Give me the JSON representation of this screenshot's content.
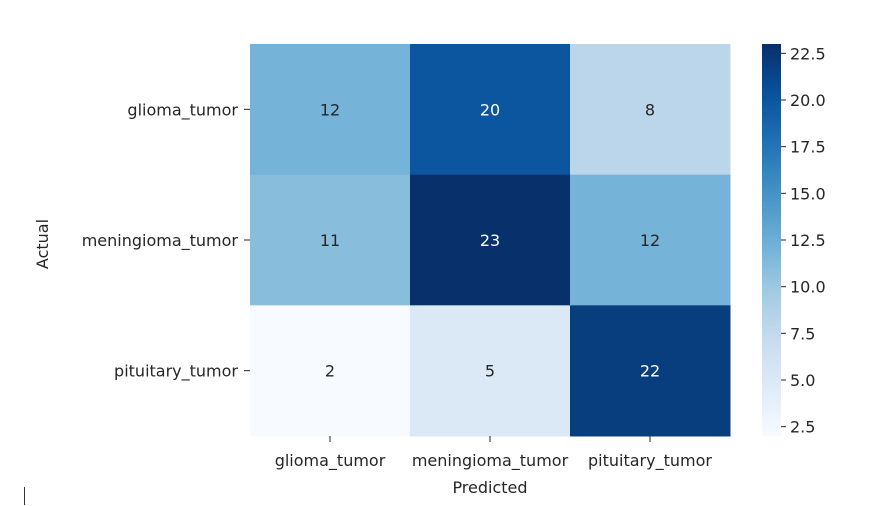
{
  "chart_data": {
    "type": "heatmap",
    "title": "",
    "xlabel": "Predicted",
    "ylabel": "Actual",
    "x_categories": [
      "glioma_tumor",
      "meningioma_tumor",
      "pituitary_tumor"
    ],
    "y_categories": [
      "glioma_tumor",
      "meningioma_tumor",
      "pituitary_tumor"
    ],
    "values": [
      [
        12,
        20,
        8
      ],
      [
        11,
        23,
        12
      ],
      [
        2,
        5,
        22
      ]
    ],
    "colormap": "Blues",
    "colorbar": {
      "range": [
        2,
        23
      ],
      "ticks": [
        2.5,
        5.0,
        7.5,
        10.0,
        12.5,
        15.0,
        17.5,
        20.0,
        22.5
      ],
      "tick_labels": [
        "2.5",
        "5.0",
        "7.5",
        "10.0",
        "12.5",
        "15.0",
        "17.5",
        "20.0",
        "22.5"
      ]
    },
    "grid": false,
    "legend": "colorbar-right"
  }
}
